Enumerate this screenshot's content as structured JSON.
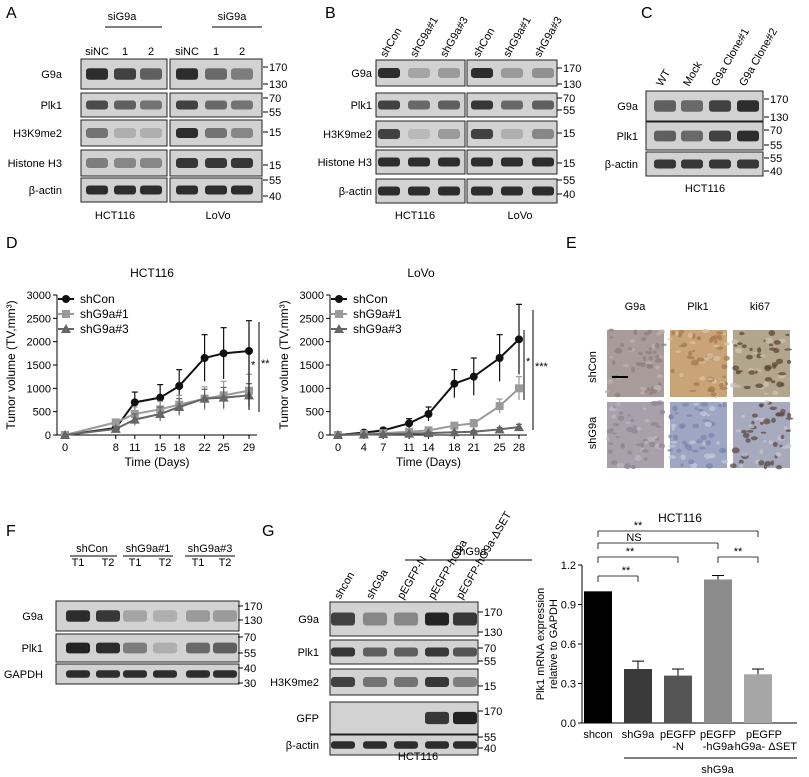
{
  "panelA": {
    "letter": "A",
    "group1": "siG9a",
    "group2": "siG9a",
    "lanes": [
      "siNC",
      "1",
      "2",
      "siNC",
      "1",
      "2"
    ],
    "rows": [
      "G9a",
      "Plk1",
      "H3K9me2",
      "Histone H3",
      "β-actin"
    ],
    "markers": [
      "170",
      "130",
      "70",
      "55",
      "15",
      "15",
      "55",
      "40"
    ],
    "cells": [
      "HCT116",
      "LoVo"
    ],
    "intensity": [
      [
        0.85,
        0.75,
        0.6,
        0.85,
        0.55,
        0.45
      ],
      [
        0.7,
        0.6,
        0.5,
        0.75,
        0.55,
        0.5
      ],
      [
        0.5,
        0.2,
        0.2,
        0.85,
        0.5,
        0.4
      ],
      [
        0.45,
        0.4,
        0.4,
        0.8,
        0.8,
        0.8
      ],
      [
        0.85,
        0.85,
        0.85,
        0.85,
        0.85,
        0.85
      ]
    ]
  },
  "panelB": {
    "letter": "B",
    "lanes": [
      "shCon",
      "shG9a#1",
      "shG9a#3",
      "shCon",
      "shG9a#1",
      "shG9a#3"
    ],
    "rows": [
      "G9a",
      "Plk1",
      "H3K9me2",
      "Histone H3",
      "β-actin"
    ],
    "markers": [
      "170",
      "130",
      "70",
      "55",
      "15",
      "15",
      "55",
      "40"
    ],
    "cells": [
      "HCT116",
      "LoVo"
    ],
    "intensity": [
      [
        0.85,
        0.25,
        0.3,
        0.85,
        0.3,
        0.35
      ],
      [
        0.75,
        0.55,
        0.6,
        0.8,
        0.55,
        0.6
      ],
      [
        0.75,
        0.15,
        0.3,
        0.75,
        0.2,
        0.4
      ],
      [
        0.85,
        0.85,
        0.85,
        0.85,
        0.85,
        0.85
      ],
      [
        0.85,
        0.85,
        0.85,
        0.85,
        0.85,
        0.85
      ]
    ]
  },
  "panelC": {
    "letter": "C",
    "lanes": [
      "WT",
      "Mock",
      "G9a Clone#1",
      "G9a Clone#2"
    ],
    "rows": [
      "G9a",
      "Plk1",
      "β-actin"
    ],
    "markers": [
      "170",
      "130",
      "70",
      "55",
      "55",
      "40"
    ],
    "cell": "HCT116",
    "intensity": [
      [
        0.6,
        0.55,
        0.75,
        0.85
      ],
      [
        0.6,
        0.55,
        0.75,
        0.85
      ],
      [
        0.8,
        0.8,
        0.8,
        0.8
      ]
    ]
  },
  "panelD": {
    "letter": "D",
    "chart_data": [
      {
        "type": "line",
        "title": "HCT116",
        "xlabel": "Time (Days)",
        "ylabel": "Tumor volume (TV,mm³)",
        "x": [
          0,
          8,
          11,
          15,
          18,
          22,
          25,
          29
        ],
        "ylim": [
          0,
          3000
        ],
        "yticks": [
          "0",
          "500",
          "1000",
          "1500",
          "2000",
          "2500",
          "3000"
        ],
        "series": [
          {
            "name": "shCon",
            "values": [
              0,
              150,
              700,
              800,
              1050,
              1650,
              1750,
              1800
            ],
            "err": [
              0,
              60,
              220,
              280,
              350,
              500,
              550,
              650
            ],
            "color": "#111111",
            "marker": "circle"
          },
          {
            "name": "shG9a#1",
            "values": [
              0,
              270,
              450,
              550,
              650,
              780,
              850,
              950
            ],
            "err": [
              0,
              60,
              150,
              170,
              200,
              250,
              300,
              350
            ],
            "color": "#9a9a9a",
            "marker": "square"
          },
          {
            "name": "shG9a#3",
            "values": [
              0,
              130,
              330,
              450,
              600,
              780,
              800,
              850
            ],
            "err": [
              0,
              50,
              120,
              150,
              180,
              200,
              220,
              250
            ],
            "color": "#666666",
            "marker": "triangle"
          }
        ],
        "sig": [
          "*",
          "**"
        ]
      },
      {
        "type": "line",
        "title": "LoVo",
        "xlabel": "Time (Days)",
        "ylabel": "Tumor volume (TV,mm³)",
        "x": [
          0,
          4,
          7,
          11,
          14,
          18,
          21,
          25,
          28
        ],
        "ylim": [
          0,
          3000
        ],
        "yticks": [
          "0",
          "500",
          "1000",
          "1500",
          "2000",
          "2500",
          "3000"
        ],
        "series": [
          {
            "name": "shCon",
            "values": [
              0,
              50,
              100,
              250,
              450,
              1100,
              1250,
              1650,
              2050
            ],
            "err": [
              0,
              30,
              50,
              100,
              150,
              300,
              400,
              500,
              750
            ],
            "color": "#111111",
            "marker": "circle"
          },
          {
            "name": "shG9a#1",
            "values": [
              0,
              20,
              40,
              70,
              100,
              200,
              250,
              620,
              1000
            ],
            "err": [
              0,
              10,
              20,
              30,
              40,
              60,
              80,
              150,
              250
            ],
            "color": "#9a9a9a",
            "marker": "square"
          },
          {
            "name": "shG9a#3",
            "values": [
              0,
              10,
              20,
              30,
              40,
              60,
              70,
              120,
              170
            ],
            "err": [
              0,
              5,
              10,
              10,
              15,
              20,
              25,
              40,
              60
            ],
            "color": "#666666",
            "marker": "triangle"
          }
        ],
        "sig": [
          "*",
          "***"
        ]
      }
    ]
  },
  "panelE": {
    "letter": "E",
    "cols": [
      "G9a",
      "Plk1",
      "ki67"
    ],
    "rows": [
      "shCon",
      "shG9a"
    ]
  },
  "panelF": {
    "letter": "F",
    "groups": [
      "shCon",
      "shG9a#1",
      "shG9a#3"
    ],
    "lanes": [
      "T1",
      "T2",
      "T1",
      "T2",
      "T1",
      "T2"
    ],
    "rows": [
      "G9a",
      "Plk1",
      "GAPDH"
    ],
    "markers": [
      "170",
      "130",
      "70",
      "55",
      "40",
      "30"
    ],
    "intensity": [
      [
        0.85,
        0.8,
        0.25,
        0.2,
        0.3,
        0.3
      ],
      [
        0.9,
        0.85,
        0.45,
        0.2,
        0.55,
        0.6
      ],
      [
        0.85,
        0.85,
        0.85,
        0.85,
        0.85,
        0.85
      ]
    ]
  },
  "panelG": {
    "letter": "G",
    "header": "shG9a",
    "lanes": [
      "shcon",
      "shG9a",
      "pEGFP-N",
      "pEGFP-hG9a",
      "pEGFP-hG9a-ΔSET"
    ],
    "rows": [
      "G9a",
      "Plk1",
      "H3K9me2",
      "GFP",
      "β-actin"
    ],
    "markers": [
      "170",
      "130",
      "70",
      "55",
      "15",
      "170",
      "55",
      "40"
    ],
    "cell": "HCT116",
    "intensity": [
      [
        0.75,
        0.4,
        0.4,
        0.9,
        0.8
      ],
      [
        0.8,
        0.6,
        0.6,
        0.8,
        0.65
      ],
      [
        0.75,
        0.5,
        0.5,
        0.8,
        0.45
      ],
      [
        0.0,
        0.0,
        0.0,
        0.8,
        0.9
      ],
      [
        0.85,
        0.85,
        0.85,
        0.85,
        0.85
      ]
    ],
    "chart_data": {
      "type": "bar",
      "title": "HCT116",
      "ylabel": "Plk1 mRNA expression relative to GAPDH",
      "ylabel_line1": "Plk1 mRNA expression",
      "ylabel_line2": "relative to GAPDH",
      "categories": [
        "shcon",
        "shG9a",
        "pEGFP-N",
        "pEGFP-hG9a",
        "pEGFP-hG9a- ΔSET"
      ],
      "xtick_lines": [
        [
          "shcon"
        ],
        [
          "shG9a"
        ],
        [
          "pEGFP",
          "-N"
        ],
        [
          "pEGFP",
          "-hG9a"
        ],
        [
          "pEGFP",
          "-hG9a- ΔSET"
        ]
      ],
      "values": [
        1.0,
        0.41,
        0.36,
        1.09,
        0.37
      ],
      "err": [
        0.0,
        0.06,
        0.05,
        0.03,
        0.04
      ],
      "colors": [
        "#000000",
        "#3a3a3a",
        "#555555",
        "#8c8c8c",
        "#a6a6a6"
      ],
      "ylim": [
        0,
        1.2
      ],
      "yticks": [
        "0.0",
        "0.3",
        "0.6",
        "0.9",
        "1.2"
      ],
      "group_label": "shG9a",
      "comparisons": [
        {
          "label": "**",
          "from": 0,
          "to": 1
        },
        {
          "label": "**",
          "from": 0,
          "to": 2
        },
        {
          "label": "NS",
          "from": 0,
          "to": 3
        },
        {
          "label": "**",
          "from": 0,
          "to": 4
        },
        {
          "label": "**",
          "from": 3,
          "to": 4
        }
      ]
    }
  }
}
